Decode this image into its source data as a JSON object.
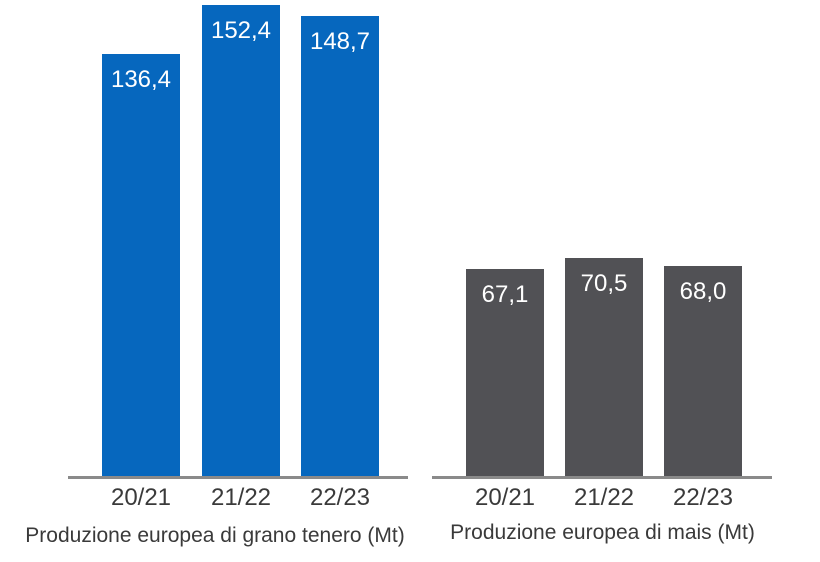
{
  "styles": {
    "background": "#ffffff",
    "text_color": "#3a3a3a",
    "axis_line_color": "#8a8a8a"
  },
  "chart_data": [
    {
      "type": "bar",
      "title": "Produzione europea di grano tenero (Mt)",
      "categories": [
        "20/21",
        "21/22",
        "22/23"
      ],
      "values": [
        136.4,
        152.4,
        148.7
      ],
      "value_labels": [
        "136,4",
        "152,4",
        "148,7"
      ],
      "bar_color": "#0667be",
      "value_label_color": "#ffffff",
      "value_label_position": "inside-top",
      "xlabel": "",
      "ylabel": "",
      "ylim": [
        0,
        155
      ],
      "grid": false,
      "legend": "none",
      "y_axis_visible": false
    },
    {
      "type": "bar",
      "title": "Produzione europea di mais (Mt)",
      "categories": [
        "20/21",
        "21/22",
        "22/23"
      ],
      "values": [
        67.1,
        70.5,
        68.0
      ],
      "value_labels": [
        "67,1",
        "70,5",
        "68,0"
      ],
      "bar_color": "#515155",
      "value_label_color": "#ffffff",
      "value_label_position": "inside-top",
      "xlabel": "",
      "ylabel": "",
      "ylim": [
        0,
        155
      ],
      "grid": false,
      "legend": "none",
      "y_axis_visible": false
    }
  ]
}
